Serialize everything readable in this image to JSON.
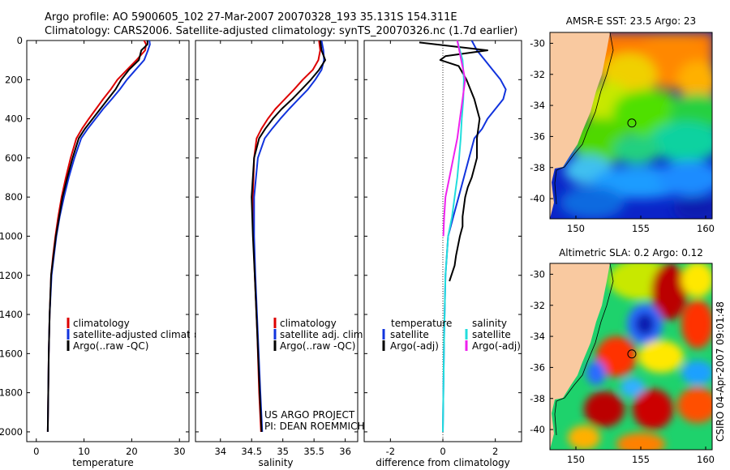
{
  "title": {
    "line1": "Argo profile: AO 5900605_102 27-Mar-2007 20070328_193 35.131S 154.311E",
    "line2": "Climatology: CARS2006. Satellite-adjusted climatology: synTS_20070326.nc (1.7d earlier)"
  },
  "credits": {
    "project": "US ARGO PROJECT",
    "pi": "PI: DEAN ROEMMICH",
    "stamp": "CSIRO 04-Apr-2007 09:01:48"
  },
  "colors": {
    "climatology": "#dd0000",
    "satellite": "#1133dd",
    "argo": "#000000",
    "cyan": "#22dddd",
    "magenta": "#ee22ee",
    "land": "#f9c9a0"
  },
  "chart_data": [
    {
      "type": "line",
      "id": "temperature",
      "xlabel": "temperature",
      "xlim": [
        -2,
        32
      ],
      "ylim": [
        0,
        2050
      ],
      "y_reversed": true,
      "yticks": [
        0,
        200,
        400,
        600,
        800,
        1000,
        1200,
        1400,
        1600,
        1800,
        2000
      ],
      "xticks": [
        0,
        10,
        20,
        30
      ],
      "legend": [
        "climatology",
        "satellite-adjusted climatology",
        "Argo(..raw -QC)"
      ],
      "series": [
        {
          "name": "climatology",
          "color": "#dd0000",
          "x": [
            22.6,
            23.0,
            22.8,
            21.0,
            19.0,
            17.0,
            15.6,
            14.0,
            12.5,
            11.0,
            9.6,
            8.4,
            7.2,
            6.2,
            5.3,
            4.6,
            4.0,
            3.5,
            3.1,
            2.8,
            2.6,
            2.5,
            2.4
          ],
          "y": [
            0,
            20,
            50,
            100,
            150,
            200,
            250,
            300,
            350,
            400,
            450,
            500,
            600,
            700,
            800,
            900,
            1000,
            1100,
            1200,
            1400,
            1600,
            1800,
            2000
          ]
        },
        {
          "name": "satellite-adjusted climatology",
          "color": "#1133dd",
          "x": [
            23.7,
            23.8,
            23.4,
            22.6,
            20.8,
            19.0,
            17.5,
            15.8,
            14.0,
            12.4,
            10.8,
            9.4,
            8.0,
            6.8,
            5.8,
            4.9,
            4.2,
            3.7,
            3.2,
            2.8,
            2.6,
            2.5,
            2.4
          ],
          "y": [
            0,
            20,
            50,
            100,
            150,
            200,
            250,
            300,
            350,
            400,
            450,
            500,
            600,
            700,
            800,
            900,
            1000,
            1100,
            1200,
            1400,
            1600,
            1800,
            2000
          ]
        },
        {
          "name": "Argo(..raw -QC)",
          "color": "#000000",
          "x": [
            23.3,
            23.3,
            22.0,
            21.5,
            19.4,
            17.8,
            16.6,
            15.0,
            13.4,
            11.8,
            10.2,
            8.9,
            7.6,
            6.5,
            5.5,
            4.8,
            4.1,
            3.6,
            3.1,
            2.8,
            2.6,
            2.5,
            2.4
          ],
          "y": [
            0,
            20,
            50,
            100,
            150,
            200,
            250,
            300,
            350,
            400,
            450,
            500,
            600,
            700,
            800,
            900,
            1000,
            1100,
            1200,
            1400,
            1600,
            1800,
            2000
          ]
        }
      ]
    },
    {
      "type": "line",
      "id": "salinity",
      "xlabel": "salinity",
      "xlim": [
        33.6,
        36.2
      ],
      "ylim": [
        0,
        2050
      ],
      "y_reversed": true,
      "xticks": [
        34,
        34.5,
        35,
        35.5,
        36
      ],
      "legend": [
        "climatology",
        "satellite adj. clim.",
        "Argo(..raw -QC)"
      ],
      "series": [
        {
          "name": "climatology",
          "color": "#dd0000",
          "x": [
            35.58,
            35.6,
            35.57,
            35.48,
            35.32,
            35.18,
            35.03,
            34.88,
            34.76,
            34.66,
            34.58,
            34.54,
            34.52,
            34.53,
            34.55,
            34.59,
            34.62,
            34.65
          ],
          "y": [
            0,
            50,
            100,
            150,
            200,
            250,
            300,
            350,
            400,
            450,
            500,
            600,
            800,
            1000,
            1200,
            1500,
            1800,
            2000
          ]
        },
        {
          "name": "satellite adj. clim.",
          "color": "#1133dd",
          "x": [
            35.62,
            35.65,
            35.66,
            35.62,
            35.52,
            35.4,
            35.25,
            35.1,
            34.96,
            34.83,
            34.71,
            34.6,
            34.54,
            34.54,
            34.56,
            34.6,
            34.64,
            34.67
          ],
          "y": [
            0,
            50,
            100,
            150,
            200,
            250,
            300,
            350,
            400,
            450,
            500,
            600,
            800,
            1000,
            1200,
            1500,
            1800,
            2000
          ]
        },
        {
          "name": "Argo(..raw -QC)",
          "color": "#000000",
          "x": [
            35.6,
            35.62,
            35.68,
            35.58,
            35.45,
            35.3,
            35.15,
            34.98,
            34.84,
            34.72,
            34.62,
            34.54,
            34.5,
            34.52,
            34.55,
            34.59,
            34.63,
            34.66
          ],
          "y": [
            0,
            50,
            100,
            150,
            200,
            250,
            300,
            350,
            400,
            450,
            500,
            600,
            800,
            1000,
            1200,
            1500,
            1800,
            2000
          ]
        }
      ]
    },
    {
      "type": "line",
      "id": "difference",
      "xlabel": "difference from climatology",
      "xlim": [
        -3,
        3
      ],
      "ylim": [
        0,
        2050
      ],
      "y_reversed": true,
      "xticks": [
        -2,
        0,
        2
      ],
      "zero_line": true,
      "legend_left": [
        "temperature",
        "satellite",
        "Argo(-adj)"
      ],
      "legend_right": [
        "salinity",
        "satellite",
        "Argo(-adj)"
      ],
      "series": [
        {
          "name": "satellite",
          "group": "temperature",
          "color": "#1133dd",
          "x": [
            1.1,
            1.3,
            1.6,
            1.9,
            2.2,
            2.4,
            2.3,
            2.0,
            1.7,
            1.5,
            1.2,
            1.0,
            0.8,
            0.6,
            0.4,
            0.2,
            0.1,
            0.05,
            0.02,
            0.0
          ],
          "y": [
            0,
            50,
            100,
            150,
            200,
            250,
            300,
            350,
            400,
            450,
            500,
            600,
            700,
            800,
            900,
            1000,
            1200,
            1500,
            1800,
            2000
          ]
        },
        {
          "name": "Argo(-adj)",
          "group": "temperature",
          "color": "#000000",
          "x": [
            -0.9,
            1.7,
            0.1,
            -0.1,
            0.6,
            0.9,
            1.2,
            1.4,
            1.3,
            1.3,
            1.2,
            1.1,
            0.95,
            0.85,
            0.8,
            0.75,
            0.75,
            0.65,
            0.5,
            0.45,
            0.25
          ],
          "y": [
            10,
            50,
            80,
            100,
            130,
            200,
            300,
            400,
            500,
            600,
            650,
            700,
            750,
            800,
            850,
            900,
            950,
            1000,
            1100,
            1150,
            1230
          ]
        },
        {
          "name": "satellite",
          "group": "salinity",
          "color": "#22dddd",
          "x": [
            0.55,
            0.75,
            0.8,
            0.78,
            0.72,
            0.68,
            0.62,
            0.55,
            0.45,
            0.35,
            0.2,
            0.1,
            0.05,
            0.02,
            0.0
          ],
          "y": [
            0,
            100,
            200,
            300,
            400,
            500,
            600,
            700,
            800,
            900,
            1000,
            1200,
            1500,
            1800,
            2000
          ]
        },
        {
          "name": "Argo(-adj)",
          "group": "salinity",
          "color": "#ee22ee",
          "x": [
            0.55,
            0.7,
            0.85,
            0.75,
            0.65,
            0.55,
            0.4,
            0.25,
            0.1,
            0.05,
            0.02
          ],
          "y": [
            0,
            100,
            200,
            300,
            400,
            500,
            600,
            700,
            800,
            900,
            1000
          ]
        }
      ]
    },
    {
      "type": "heatmap",
      "id": "sst_map",
      "title": "AMSR-E SST: 23.5 Argo: 23",
      "xlim": [
        148,
        160.5
      ],
      "ylim": [
        -41.3,
        -29.3
      ],
      "xticks": [
        150,
        155,
        160
      ],
      "yticks": [
        -30,
        -32,
        -34,
        -36,
        -38,
        -40
      ],
      "argo_position": {
        "lon": 154.311,
        "lat": -35.131
      }
    },
    {
      "type": "heatmap",
      "id": "sla_map",
      "title": "Altimetric SLA: 0.2 Argo: 0.12",
      "xlim": [
        148,
        160.5
      ],
      "ylim": [
        -41.3,
        -29.3
      ],
      "xticks": [
        150,
        155,
        160
      ],
      "yticks": [
        -30,
        -32,
        -34,
        -36,
        -38,
        -40
      ],
      "argo_position": {
        "lon": 154.311,
        "lat": -35.131
      }
    }
  ]
}
